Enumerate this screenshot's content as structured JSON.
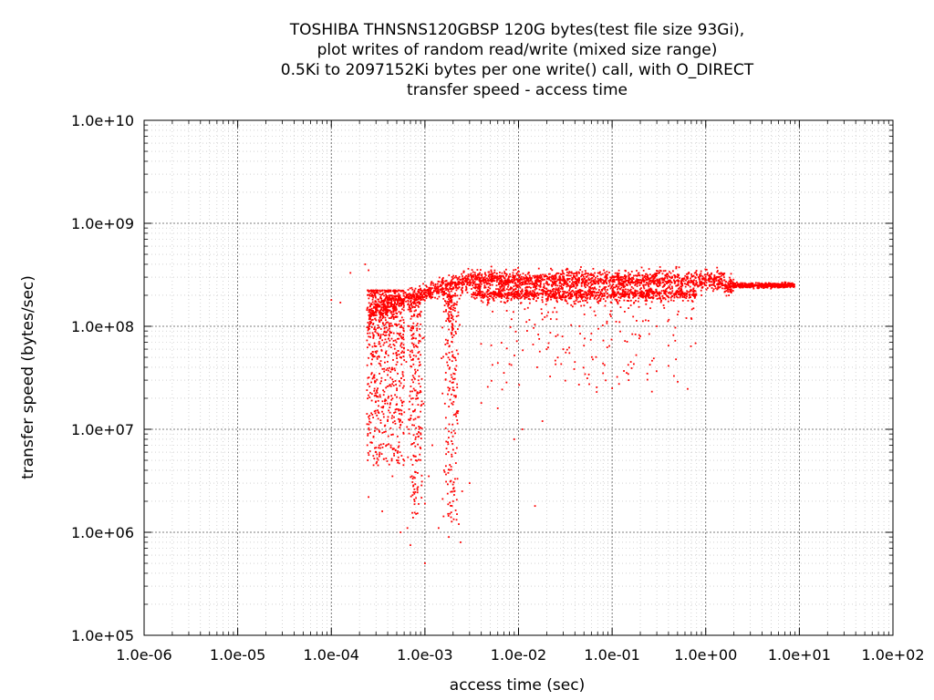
{
  "chart_data": {
    "type": "scatter",
    "title_lines": [
      "TOSHIBA THNSNS120GBSP 120G bytes(test file size 93Gi),",
      "plot writes of random read/write (mixed size range)",
      "0.5Ki to 2097152Ki bytes per one write() call, with O_DIRECT",
      "transfer speed - access time"
    ],
    "xlabel": "access time (sec)",
    "ylabel": "transfer speed (bytes/sec)",
    "x_scale": "log",
    "y_scale": "log",
    "xlim": [
      1e-06,
      100
    ],
    "ylim": [
      100000.0,
      10000000000.0
    ],
    "x_ticks": [
      1e-06,
      1e-05,
      0.0001,
      0.001,
      0.01,
      0.1,
      1,
      10,
      100
    ],
    "x_tick_labels": [
      "1.0e-06",
      "1.0e-05",
      "1.0e-04",
      "1.0e-03",
      "1.0e-02",
      "1.0e-01",
      "1.0e+00",
      "1.0e+01",
      "1.0e+02"
    ],
    "y_ticks": [
      100000.0,
      1000000.0,
      10000000.0,
      100000000.0,
      1000000000.0,
      10000000000.0
    ],
    "y_tick_labels": [
      "1.0e+05",
      "1.0e+06",
      "1.0e+07",
      "1.0e+08",
      "1.0e+09",
      "1.0e+10"
    ],
    "grid": true,
    "point_color": "#ff0000",
    "series": [
      {
        "points": [
          [
            0.0001,
            180000000.0
          ],
          [
            0.000125,
            170000000.0
          ],
          [
            0.00016,
            330000000.0
          ],
          [
            0.00023,
            400000000.0
          ],
          [
            0.00025,
            350000000.0
          ],
          [
            0.00025,
            2200000.0
          ],
          [
            0.00028,
            13000000.0
          ],
          [
            0.0003,
            6000000.0
          ],
          [
            0.00035,
            1600000.0
          ],
          [
            0.0004,
            12000000.0
          ],
          [
            0.00045,
            3500000.0
          ],
          [
            0.0005,
            5000000.0
          ],
          [
            0.00055,
            1000000.0
          ],
          [
            0.00065,
            1100000.0
          ],
          [
            0.0007,
            750000.0
          ],
          [
            0.00075,
            2800000.0
          ],
          [
            0.0008,
            5000000.0
          ],
          [
            0.0009,
            6500000.0
          ],
          [
            0.001,
            500000.0
          ],
          [
            0.001,
            1900000.0
          ],
          [
            0.0011,
            3500000.0
          ],
          [
            0.0012,
            7000000.0
          ],
          [
            0.0014,
            1100000.0
          ],
          [
            0.0016,
            4000000.0
          ],
          [
            0.0018,
            900000.0
          ],
          [
            0.002,
            2000000.0
          ],
          [
            0.0021,
            3300000.0
          ],
          [
            0.0022,
            1500000.0
          ],
          [
            0.0023,
            1200000.0
          ],
          [
            0.0024,
            800000.0
          ],
          [
            0.0025,
            2500000.0
          ],
          [
            0.003,
            3000000.0
          ],
          [
            0.004,
            18000000.0
          ],
          [
            0.006,
            16000000.0
          ],
          [
            0.008,
            43000000.0
          ],
          [
            0.009,
            8000000.0
          ],
          [
            0.011,
            10000000.0
          ],
          [
            0.015,
            1800000.0
          ],
          [
            0.018,
            12000000.0
          ],
          [
            0.02,
            60000000.0
          ],
          [
            0.025,
            80000000.0
          ],
          [
            0.03,
            60000000.0
          ],
          [
            0.035,
            55000000.0
          ],
          [
            0.04,
            45000000.0
          ],
          [
            0.05,
            65000000.0
          ],
          [
            0.06,
            85000000.0
          ],
          [
            0.08,
            35000000.0
          ],
          [
            0.1,
            25000000.0
          ],
          [
            0.12,
            110000000.0
          ],
          [
            0.15,
            30000000.0
          ],
          [
            0.2,
            80000000.0
          ],
          [
            0.3,
            100000000.0
          ],
          [
            0.4,
            65000000.0
          ],
          [
            0.5,
            130000000.0
          ],
          [
            0.7,
            120000000.0
          ],
          [
            0.9,
            200000000.0
          ],
          [
            1.2,
            220000000.0
          ],
          [
            2.0,
            240000000.0
          ],
          [
            3.0,
            240000000.0
          ],
          [
            5.0,
            240000000.0
          ],
          [
            8.0,
            240000000.0
          ]
        ]
      }
    ]
  }
}
